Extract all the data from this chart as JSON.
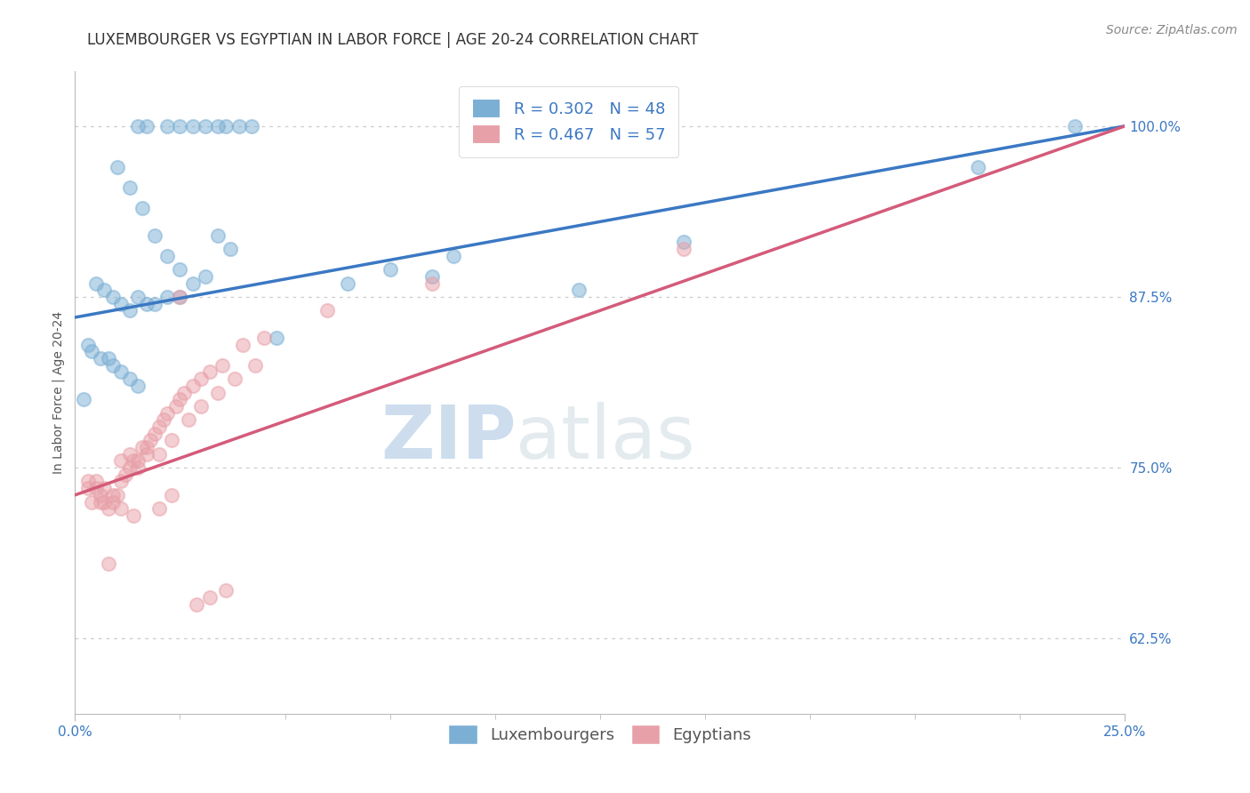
{
  "title": "LUXEMBOURGER VS EGYPTIAN IN LABOR FORCE | AGE 20-24 CORRELATION CHART",
  "source": "Source: ZipAtlas.com",
  "xlim": [
    0.0,
    25.0
  ],
  "ylim": [
    57.0,
    104.0
  ],
  "blue_R": 0.302,
  "blue_N": 48,
  "pink_R": 0.467,
  "pink_N": 57,
  "blue_color": "#7bafd4",
  "pink_color": "#e8a0a8",
  "line_blue": "#3b78c3",
  "line_pink": "#d45b7a",
  "watermark_zip": "ZIP",
  "watermark_atlas": "atlas",
  "legend_label_blue": "Luxembourgers",
  "legend_label_pink": "Egyptians",
  "blue_scatter_x": [
    1.5,
    1.7,
    2.2,
    2.5,
    2.8,
    3.1,
    3.4,
    3.6,
    3.9,
    4.2,
    1.0,
    1.3,
    1.6,
    1.9,
    2.2,
    2.5,
    2.8,
    3.1,
    3.4,
    3.7,
    0.5,
    0.7,
    0.9,
    1.1,
    1.3,
    1.5,
    1.7,
    1.9,
    2.2,
    2.5,
    0.3,
    0.4,
    0.6,
    0.8,
    0.9,
    1.1,
    1.3,
    1.5,
    6.5,
    7.5,
    9.0,
    12.0,
    14.5,
    21.5,
    23.8,
    0.2,
    4.8,
    8.5
  ],
  "blue_scatter_y": [
    100.0,
    100.0,
    100.0,
    100.0,
    100.0,
    100.0,
    100.0,
    100.0,
    100.0,
    100.0,
    97.0,
    95.5,
    94.0,
    92.0,
    90.5,
    89.5,
    88.5,
    89.0,
    92.0,
    91.0,
    88.5,
    88.0,
    87.5,
    87.0,
    86.5,
    87.5,
    87.0,
    87.0,
    87.5,
    87.5,
    84.0,
    83.5,
    83.0,
    83.0,
    82.5,
    82.0,
    81.5,
    81.0,
    88.5,
    89.5,
    90.5,
    88.0,
    91.5,
    97.0,
    100.0,
    80.0,
    84.5,
    89.0
  ],
  "pink_scatter_x": [
    0.3,
    0.5,
    0.6,
    0.7,
    0.8,
    0.9,
    1.0,
    1.1,
    1.2,
    1.3,
    1.4,
    1.5,
    1.6,
    1.7,
    1.8,
    1.9,
    2.0,
    2.1,
    2.2,
    2.4,
    2.5,
    2.6,
    2.8,
    3.0,
    3.2,
    3.5,
    4.0,
    4.5,
    2.0,
    2.3,
    2.7,
    3.0,
    3.4,
    3.8,
    4.3,
    1.1,
    1.3,
    1.5,
    1.7,
    0.5,
    0.7,
    0.9,
    1.1,
    0.3,
    0.4,
    0.6,
    1.4,
    2.0,
    2.3,
    2.5,
    6.0,
    8.5,
    14.5,
    2.9,
    3.2,
    3.6,
    0.8
  ],
  "pink_scatter_y": [
    74.0,
    73.5,
    73.0,
    72.5,
    72.0,
    72.5,
    73.0,
    74.0,
    74.5,
    75.0,
    75.5,
    75.0,
    76.5,
    76.0,
    77.0,
    77.5,
    78.0,
    78.5,
    79.0,
    79.5,
    80.0,
    80.5,
    81.0,
    81.5,
    82.0,
    82.5,
    84.0,
    84.5,
    76.0,
    77.0,
    78.5,
    79.5,
    80.5,
    81.5,
    82.5,
    75.5,
    76.0,
    75.5,
    76.5,
    74.0,
    73.5,
    73.0,
    72.0,
    73.5,
    72.5,
    72.5,
    71.5,
    72.0,
    73.0,
    87.5,
    86.5,
    88.5,
    91.0,
    65.0,
    65.5,
    66.0,
    68.0
  ],
  "blue_line_x": [
    0.0,
    25.0
  ],
  "blue_line_y": [
    86.0,
    100.0
  ],
  "pink_line_x": [
    0.0,
    25.0
  ],
  "pink_line_y": [
    73.0,
    100.0
  ],
  "ytick_values": [
    62.5,
    75.0,
    87.5,
    100.0
  ],
  "xtick_values": [
    0.0,
    25.0
  ],
  "xtick_minor": [
    2.5,
    5.0,
    7.5,
    10.0,
    12.5,
    15.0,
    17.5,
    20.0,
    22.5
  ],
  "grid_color": "#cccccc",
  "title_color": "#333333",
  "axis_label_color": "#555555",
  "tick_color": "#3b78c3",
  "background_color": "#ffffff",
  "title_fontsize": 12,
  "axis_label_fontsize": 10,
  "tick_fontsize": 11,
  "legend_fontsize": 13,
  "source_fontsize": 10,
  "scatter_size": 120,
  "scatter_alpha": 0.5,
  "line_width": 2.5
}
